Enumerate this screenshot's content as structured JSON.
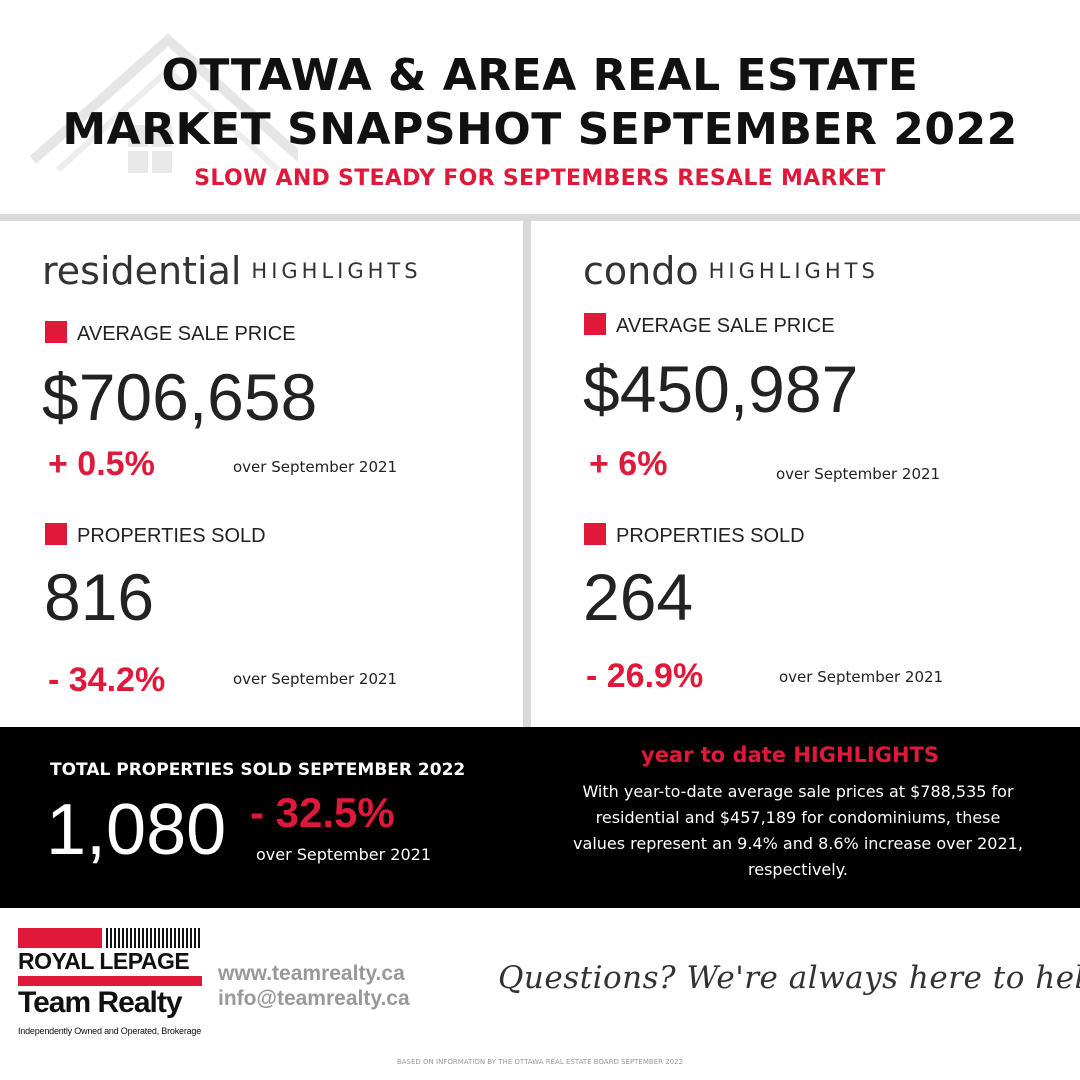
{
  "header": {
    "title_line1": "OTTAWA & AREA REAL ESTATE",
    "title_line2": "MARKET SNAPSHOT SEPTEMBER 2022",
    "subtitle": "SLOW AND STEADY FOR SEPTEMBERS RESALE MARKET",
    "background_icon": "house-outline-icon"
  },
  "residential": {
    "title_big": "residential",
    "title_small": "HIGHLIGHTS",
    "avg_price_label": "AVERAGE SALE PRICE",
    "avg_price": "$706,658",
    "avg_price_change": "+ 0.5%",
    "avg_price_compare": "over September 2021",
    "sold_label": "PROPERTIES SOLD",
    "sold": "816",
    "sold_change": "- 34.2%",
    "sold_compare": "over September 2021"
  },
  "condo": {
    "title_big": "condo",
    "title_small": "HIGHLIGHTS",
    "avg_price_label": "AVERAGE SALE PRICE",
    "avg_price": "$450,987",
    "avg_price_change": "+ 6%",
    "avg_price_compare": "over September 2021",
    "sold_label": "PROPERTIES SOLD",
    "sold": "264",
    "sold_change": "- 26.9%",
    "sold_compare": "over September 2021"
  },
  "total": {
    "label": "TOTAL PROPERTIES SOLD SEPTEMBER 2022",
    "value": "1,080",
    "change": "- 32.5%",
    "compare": "over September 2021"
  },
  "ytd": {
    "title": "year to date HIGHLIGHTS",
    "body": "With year-to-date average sale prices at $788,535 for residential and $457,189 for condominiums, these values represent an 9.4% and 8.6% increase over 2021, respectively."
  },
  "footer": {
    "logo_line1": "ROYAL LEPAGE",
    "logo_line2": "Team Realty",
    "logo_line3": "Independently Owned and Operated, Brokerage",
    "website": "www.teamrealty.ca",
    "email": "info@teamrealty.ca",
    "tagline": "Questions? We're always here to help",
    "source": "BASED ON INFORMATION BY THE OTTAWA REAL ESTATE BOARD SEPTEMBER 2022"
  },
  "colors": {
    "accent": "#e0183a",
    "dark_band": "#000000",
    "divider": "#d9d9d9"
  }
}
